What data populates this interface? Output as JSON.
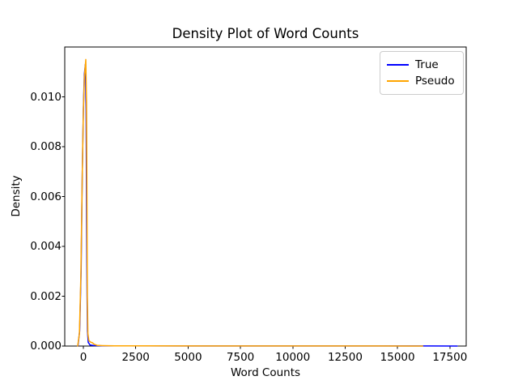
{
  "window": {
    "background": "#ffffff"
  },
  "chart_data": {
    "type": "line",
    "title": "Density Plot of Word Counts",
    "xlabel": "Word Counts",
    "ylabel": "Density",
    "xlim": [
      -890,
      18280
    ],
    "ylim": [
      0,
      0.012
    ],
    "xticks": [
      0,
      2500,
      5000,
      7500,
      10000,
      12500,
      15000,
      17500
    ],
    "xtick_labels": [
      "0",
      "2500",
      "5000",
      "7500",
      "10000",
      "12500",
      "15000",
      "17500"
    ],
    "yticks": [
      0,
      0.002,
      0.004,
      0.006,
      0.008,
      0.01
    ],
    "ytick_labels": [
      "0.000",
      "0.002",
      "0.004",
      "0.006",
      "0.008",
      "0.010"
    ],
    "grid": false,
    "axis_color": "#000000",
    "legend": {
      "position": "upper right",
      "border_color": "#cccccc"
    },
    "series": [
      {
        "name": "True",
        "color": "#0000ff",
        "peak": {
          "x": 95,
          "density": 0.0113
        },
        "x": [
          -260,
          -180,
          -110,
          -50,
          0,
          45,
          95,
          130,
          155,
          175,
          195,
          230,
          320,
          500,
          900,
          2000,
          5000,
          9000,
          13000,
          16500,
          17850
        ],
        "y": [
          0,
          0.0006,
          0.003,
          0.007,
          0.0095,
          0.0109,
          0.0113,
          0.0095,
          0.005,
          0.002,
          0.0006,
          0.00015,
          4e-05,
          2e-05,
          1e-05,
          6e-06,
          4e-06,
          3e-06,
          3e-06,
          2e-06,
          0
        ]
      },
      {
        "name": "Pseudo",
        "color": "#ffa500",
        "peak": {
          "x": 115,
          "density": 0.0115
        },
        "x": [
          -270,
          -190,
          -120,
          -55,
          0,
          50,
          115,
          150,
          172,
          190,
          215,
          260,
          340,
          430,
          520,
          650,
          900,
          1500,
          3000,
          6000,
          10000,
          14000,
          16200
        ],
        "y": [
          0,
          0.0005,
          0.0028,
          0.0068,
          0.0094,
          0.0108,
          0.0115,
          0.0098,
          0.0055,
          0.002,
          0.0005,
          0.00022,
          0.00016,
          0.00013,
          7e-05,
          3e-05,
          1.5e-05,
          1e-05,
          6e-06,
          4e-06,
          3e-06,
          2e-06,
          0
        ]
      }
    ]
  }
}
